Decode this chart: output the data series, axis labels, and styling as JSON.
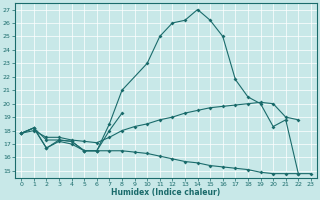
{
  "xlabel": "Humidex (Indice chaleur)",
  "bg_color": "#c8e8e8",
  "line_color": "#1a6b6b",
  "xlim": [
    -0.5,
    23.5
  ],
  "ylim": [
    14.5,
    27.5
  ],
  "xticks": [
    0,
    1,
    2,
    3,
    4,
    5,
    6,
    7,
    8,
    9,
    10,
    11,
    12,
    13,
    14,
    15,
    16,
    17,
    18,
    19,
    20,
    21,
    22,
    23
  ],
  "yticks": [
    15,
    16,
    17,
    18,
    19,
    20,
    21,
    22,
    23,
    24,
    25,
    26,
    27
  ],
  "line1_x": [
    0,
    1,
    2,
    3,
    4,
    5,
    6,
    7,
    8
  ],
  "line1_y": [
    17.8,
    18.2,
    16.7,
    17.3,
    17.2,
    16.5,
    16.5,
    18.0,
    19.3
  ],
  "line2_x": [
    0,
    1,
    2,
    3,
    4,
    5,
    6,
    7,
    8,
    10,
    11,
    12,
    13,
    14,
    15,
    16,
    17,
    18,
    19,
    20,
    21,
    22
  ],
  "line2_y": [
    17.8,
    18.2,
    17.3,
    17.3,
    17.2,
    16.5,
    16.5,
    18.5,
    21.0,
    23.0,
    25.0,
    26.0,
    26.2,
    27.0,
    26.2,
    25.0,
    21.8,
    20.5,
    20.0,
    18.3,
    18.8,
    14.8
  ],
  "line3_x": [
    0,
    1,
    2,
    3,
    4,
    5,
    6,
    7,
    8,
    9,
    10,
    11,
    12,
    13,
    14,
    15,
    16,
    17,
    18,
    19,
    20,
    21,
    22,
    23
  ],
  "line3_y": [
    17.8,
    18.2,
    16.7,
    17.2,
    17.0,
    16.5,
    16.5,
    16.5,
    16.5,
    16.4,
    16.3,
    16.1,
    15.9,
    15.7,
    15.6,
    15.4,
    15.3,
    15.2,
    15.1,
    14.9,
    14.8,
    14.8,
    14.8,
    14.8
  ],
  "line4_x": [
    0,
    1,
    2,
    3,
    4,
    5,
    6,
    7,
    8,
    9,
    10,
    11,
    12,
    13,
    14,
    15,
    16,
    17,
    18,
    19,
    20,
    21,
    22
  ],
  "line4_y": [
    17.8,
    18.0,
    17.5,
    17.5,
    17.3,
    17.2,
    17.1,
    17.5,
    18.0,
    18.3,
    18.5,
    18.8,
    19.0,
    19.3,
    19.5,
    19.7,
    19.8,
    19.9,
    20.0,
    20.1,
    20.0,
    19.0,
    18.8
  ]
}
